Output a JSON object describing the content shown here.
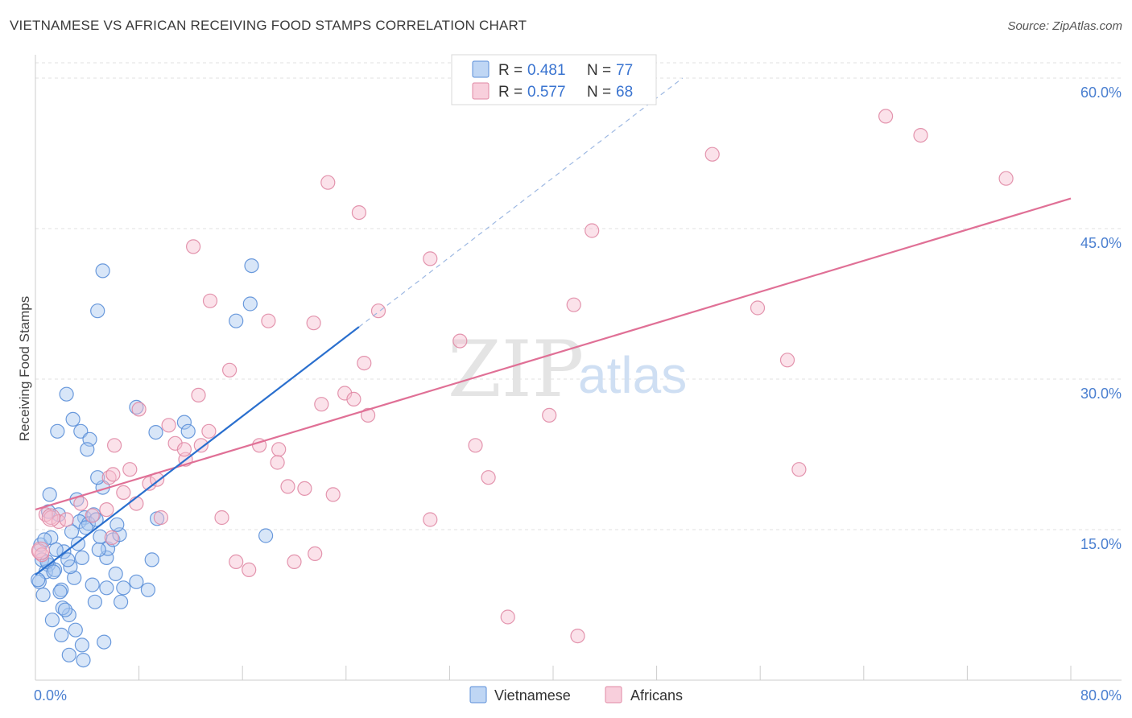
{
  "title": "VIETNAMESE VS AFRICAN RECEIVING FOOD STAMPS CORRELATION CHART",
  "source": "Source: ZipAtlas.com",
  "chart_data": {
    "type": "scatter",
    "ylabel": "Receiving Food Stamps",
    "xlim": [
      0,
      80
    ],
    "ylim": [
      0,
      60
    ],
    "x_tick_labels": [
      "0.0%",
      "80.0%"
    ],
    "y_ticks": [
      15,
      30,
      45,
      60
    ],
    "y_tick_labels": [
      "15.0%",
      "30.0%",
      "45.0%",
      "60.0%"
    ],
    "watermark": {
      "zip": "ZIP",
      "atlas": "atlas"
    },
    "legend": [
      {
        "r_label": "R =",
        "r_value": "0.481",
        "n_label": "N =",
        "n_value": "77"
      },
      {
        "r_label": "R =",
        "r_value": "0.577",
        "n_label": "N =",
        "n_value": "68"
      }
    ],
    "series": [
      {
        "name": "Vietnamese",
        "color": "#5b8fd8",
        "fill": "#a9c8f0",
        "line_color": "#2a6fce",
        "trend": {
          "x0": 0,
          "y0": 10.5,
          "x1": 25,
          "y1": 35.2,
          "dash_x1": 50,
          "dash_y1": 60
        },
        "points": [
          [
            1.0,
            11.5
          ],
          [
            0.5,
            12.0
          ],
          [
            0.8,
            10.8
          ],
          [
            1.5,
            11.0
          ],
          [
            0.4,
            13.5
          ],
          [
            1.2,
            14.2
          ],
          [
            0.3,
            9.8
          ],
          [
            0.6,
            8.5
          ],
          [
            1.8,
            16.5
          ],
          [
            1.1,
            18.5
          ],
          [
            2.0,
            9.0
          ],
          [
            2.2,
            12.8
          ],
          [
            2.6,
            6.5
          ],
          [
            2.4,
            28.5
          ],
          [
            2.9,
            26.0
          ],
          [
            1.7,
            24.8
          ],
          [
            3.5,
            24.8
          ],
          [
            4.2,
            24.0
          ],
          [
            4.0,
            23.0
          ],
          [
            3.2,
            18.0
          ],
          [
            3.8,
            16.2
          ],
          [
            4.5,
            16.5
          ],
          [
            5.2,
            19.2
          ],
          [
            4.8,
            20.2
          ],
          [
            3.4,
            15.8
          ],
          [
            4.1,
            15.6
          ],
          [
            3.6,
            12.2
          ],
          [
            3.0,
            10.2
          ],
          [
            4.4,
            9.5
          ],
          [
            5.5,
            9.2
          ],
          [
            2.1,
            7.2
          ],
          [
            1.3,
            6.0
          ],
          [
            3.1,
            5.0
          ],
          [
            2.0,
            4.5
          ],
          [
            3.6,
            3.5
          ],
          [
            2.6,
            2.5
          ],
          [
            3.7,
            2.0
          ],
          [
            5.3,
            3.8
          ],
          [
            4.6,
            7.8
          ],
          [
            6.6,
            7.8
          ],
          [
            6.8,
            9.2
          ],
          [
            7.8,
            9.8
          ],
          [
            8.7,
            9.0
          ],
          [
            9.0,
            12.0
          ],
          [
            5.5,
            12.2
          ],
          [
            5.6,
            13.1
          ],
          [
            6.0,
            14.0
          ],
          [
            4.9,
            13.0
          ],
          [
            5.0,
            14.3
          ],
          [
            6.5,
            14.5
          ],
          [
            6.2,
            10.6
          ],
          [
            7.8,
            27.2
          ],
          [
            9.4,
            16.1
          ],
          [
            9.3,
            24.7
          ],
          [
            11.5,
            25.7
          ],
          [
            11.8,
            24.8
          ],
          [
            15.5,
            35.8
          ],
          [
            16.6,
            37.5
          ],
          [
            16.7,
            41.3
          ],
          [
            17.8,
            14.4
          ],
          [
            4.8,
            36.8
          ],
          [
            5.2,
            40.8
          ],
          [
            0.7,
            14.0
          ],
          [
            0.9,
            11.8
          ],
          [
            1.4,
            10.8
          ],
          [
            1.9,
            8.8
          ],
          [
            2.3,
            7.0
          ],
          [
            2.7,
            11.3
          ],
          [
            3.3,
            13.6
          ],
          [
            2.5,
            12.0
          ],
          [
            1.6,
            13.0
          ],
          [
            0.2,
            10.0
          ],
          [
            3.9,
            15.2
          ],
          [
            4.7,
            16.0
          ],
          [
            6.3,
            15.5
          ],
          [
            1.0,
            16.8
          ],
          [
            2.8,
            14.8
          ]
        ]
      },
      {
        "name": "Africans",
        "color": "#e08aa5",
        "fill": "#f6bfd0",
        "line_color": "#e07096",
        "trend": {
          "x0": 0,
          "y0": 17.0,
          "x1": 80,
          "y1": 48.0
        },
        "points": [
          [
            0.3,
            12.9
          ],
          [
            0.5,
            12.5
          ],
          [
            0.8,
            16.5
          ],
          [
            1.2,
            16.2
          ],
          [
            1.8,
            15.8
          ],
          [
            2.4,
            16.0
          ],
          [
            3.5,
            17.6
          ],
          [
            4.4,
            16.4
          ],
          [
            5.5,
            17.0
          ],
          [
            5.9,
            14.2
          ],
          [
            7.3,
            21.0
          ],
          [
            5.7,
            20.2
          ],
          [
            6.0,
            20.5
          ],
          [
            6.1,
            23.4
          ],
          [
            7.8,
            17.6
          ],
          [
            8.8,
            19.6
          ],
          [
            9.4,
            20.0
          ],
          [
            9.7,
            16.2
          ],
          [
            10.3,
            25.4
          ],
          [
            10.8,
            23.6
          ],
          [
            11.6,
            22.0
          ],
          [
            11.5,
            23.0
          ],
          [
            12.8,
            23.4
          ],
          [
            13.4,
            24.8
          ],
          [
            12.6,
            28.4
          ],
          [
            14.4,
            16.2
          ],
          [
            15.0,
            30.9
          ],
          [
            15.5,
            11.8
          ],
          [
            16.5,
            11.0
          ],
          [
            17.3,
            23.4
          ],
          [
            18.0,
            35.8
          ],
          [
            18.8,
            23.0
          ],
          [
            18.7,
            21.7
          ],
          [
            19.5,
            19.3
          ],
          [
            20.0,
            11.8
          ],
          [
            20.8,
            19.1
          ],
          [
            21.5,
            35.6
          ],
          [
            21.6,
            12.6
          ],
          [
            22.1,
            27.5
          ],
          [
            22.6,
            49.6
          ],
          [
            23.0,
            18.5
          ],
          [
            23.9,
            28.6
          ],
          [
            24.6,
            28.0
          ],
          [
            25.0,
            46.6
          ],
          [
            25.4,
            31.6
          ],
          [
            25.7,
            26.4
          ],
          [
            26.5,
            36.8
          ],
          [
            30.5,
            16.0
          ],
          [
            30.5,
            42.0
          ],
          [
            32.8,
            33.8
          ],
          [
            34.0,
            23.4
          ],
          [
            35.0,
            20.2
          ],
          [
            36.5,
            6.3
          ],
          [
            39.7,
            26.4
          ],
          [
            41.6,
            37.4
          ],
          [
            41.9,
            4.4
          ],
          [
            43.0,
            44.8
          ],
          [
            52.3,
            52.4
          ],
          [
            55.8,
            37.1
          ],
          [
            58.1,
            31.9
          ],
          [
            59.0,
            21.0
          ],
          [
            65.7,
            56.2
          ],
          [
            68.4,
            54.3
          ],
          [
            75.0,
            50.0
          ],
          [
            12.2,
            43.2
          ],
          [
            13.5,
            37.8
          ],
          [
            8.0,
            27.0
          ],
          [
            6.8,
            18.7
          ]
        ]
      }
    ]
  }
}
